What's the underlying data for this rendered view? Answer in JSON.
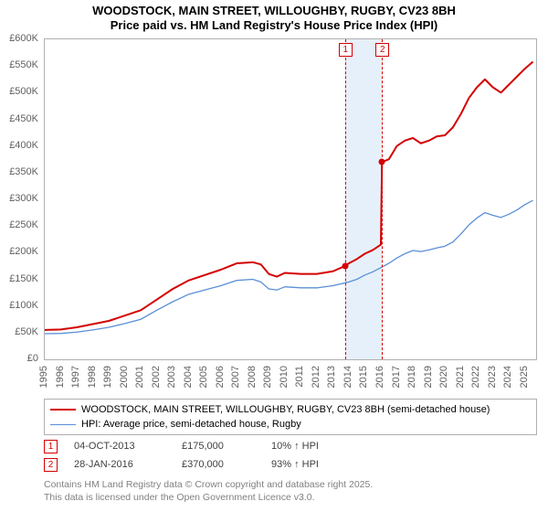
{
  "title": {
    "line1": "WOODSTOCK, MAIN STREET, WILLOUGHBY, RUGBY, CV23 8BH",
    "line2": "Price paid vs. HM Land Registry's House Price Index (HPI)"
  },
  "chart": {
    "type": "line",
    "background_color": "#ffffff",
    "border_color": "#b0b0b0",
    "highlight_band_color": "#e6f0fa",
    "xlim": [
      1995,
      2025.7
    ],
    "ylim": [
      0,
      600000
    ],
    "yticks": [
      0,
      50000,
      100000,
      150000,
      200000,
      250000,
      300000,
      350000,
      400000,
      450000,
      500000,
      550000,
      600000
    ],
    "ytick_labels": [
      "£0",
      "£50K",
      "£100K",
      "£150K",
      "£200K",
      "£250K",
      "£300K",
      "£350K",
      "£400K",
      "£450K",
      "£500K",
      "£550K",
      "£600K"
    ],
    "xticks": [
      1995,
      1996,
      1997,
      1998,
      1999,
      2000,
      2001,
      2002,
      2003,
      2004,
      2005,
      2006,
      2007,
      2008,
      2009,
      2010,
      2011,
      2012,
      2013,
      2014,
      2015,
      2016,
      2017,
      2018,
      2019,
      2020,
      2021,
      2022,
      2023,
      2024,
      2025
    ],
    "tick_font_size": 11,
    "tick_color": "#606060",
    "series": [
      {
        "name": "price_paid",
        "label": "WOODSTOCK, MAIN STREET, WILLOUGHBY, RUGBY, CV23 8BH (semi-detached house)",
        "color": "#d40000",
        "line_width": 2,
        "points": [
          [
            1995,
            55000
          ],
          [
            1996,
            56000
          ],
          [
            1997,
            60000
          ],
          [
            1998,
            66000
          ],
          [
            1999,
            72000
          ],
          [
            2000,
            82000
          ],
          [
            2001,
            92000
          ],
          [
            2002,
            112000
          ],
          [
            2003,
            132000
          ],
          [
            2004,
            148000
          ],
          [
            2005,
            158000
          ],
          [
            2006,
            168000
          ],
          [
            2007,
            180000
          ],
          [
            2008,
            182000
          ],
          [
            2008.5,
            178000
          ],
          [
            2009,
            160000
          ],
          [
            2009.5,
            155000
          ],
          [
            2010,
            162000
          ],
          [
            2011,
            160000
          ],
          [
            2012,
            160000
          ],
          [
            2013,
            165000
          ],
          [
            2013.76,
            175000
          ],
          [
            2014,
            180000
          ],
          [
            2014.5,
            188000
          ],
          [
            2015,
            198000
          ],
          [
            2015.5,
            205000
          ],
          [
            2016.0,
            215000
          ],
          [
            2016.07,
            370000
          ],
          [
            2016.5,
            375000
          ],
          [
            2017,
            400000
          ],
          [
            2017.5,
            410000
          ],
          [
            2018,
            415000
          ],
          [
            2018.5,
            405000
          ],
          [
            2019,
            410000
          ],
          [
            2019.5,
            418000
          ],
          [
            2020,
            420000
          ],
          [
            2020.5,
            435000
          ],
          [
            2021,
            460000
          ],
          [
            2021.5,
            490000
          ],
          [
            2022,
            510000
          ],
          [
            2022.5,
            525000
          ],
          [
            2023,
            510000
          ],
          [
            2023.5,
            500000
          ],
          [
            2024,
            515000
          ],
          [
            2024.5,
            530000
          ],
          [
            2025,
            545000
          ],
          [
            2025.5,
            558000
          ]
        ]
      },
      {
        "name": "hpi",
        "label": "HPI: Average price, semi-detached house, Rugby",
        "color": "#5b8fd6",
        "line_width": 1.3,
        "points": [
          [
            1995,
            48000
          ],
          [
            1996,
            48500
          ],
          [
            1997,
            51000
          ],
          [
            1998,
            55000
          ],
          [
            1999,
            60000
          ],
          [
            2000,
            67000
          ],
          [
            2001,
            75000
          ],
          [
            2002,
            92000
          ],
          [
            2003,
            108000
          ],
          [
            2004,
            122000
          ],
          [
            2005,
            130000
          ],
          [
            2006,
            138000
          ],
          [
            2007,
            148000
          ],
          [
            2008,
            150000
          ],
          [
            2008.5,
            145000
          ],
          [
            2009,
            132000
          ],
          [
            2009.5,
            130000
          ],
          [
            2010,
            136000
          ],
          [
            2011,
            134000
          ],
          [
            2012,
            134000
          ],
          [
            2013,
            138000
          ],
          [
            2014,
            145000
          ],
          [
            2014.5,
            150000
          ],
          [
            2015,
            158000
          ],
          [
            2015.5,
            164000
          ],
          [
            2016,
            172000
          ],
          [
            2016.5,
            180000
          ],
          [
            2017,
            190000
          ],
          [
            2017.5,
            198000
          ],
          [
            2018,
            204000
          ],
          [
            2018.5,
            202000
          ],
          [
            2019,
            205000
          ],
          [
            2019.5,
            209000
          ],
          [
            2020,
            212000
          ],
          [
            2020.5,
            220000
          ],
          [
            2021,
            235000
          ],
          [
            2021.5,
            252000
          ],
          [
            2022,
            265000
          ],
          [
            2022.5,
            275000
          ],
          [
            2023,
            270000
          ],
          [
            2023.5,
            266000
          ],
          [
            2024,
            272000
          ],
          [
            2024.5,
            280000
          ],
          [
            2025,
            290000
          ],
          [
            2025.5,
            298000
          ]
        ]
      }
    ],
    "sale_markers": [
      {
        "n": "1",
        "x": 2013.76,
        "y": 175000,
        "color": "#d40000"
      },
      {
        "n": "2",
        "x": 2016.07,
        "y": 370000,
        "color": "#d40000"
      }
    ],
    "marker_box_color": "#d40000",
    "marker_dash_color": "#d40000"
  },
  "legend": {
    "border_color": "#b0b0b0",
    "items": [
      {
        "color": "#d40000",
        "width": 2.5,
        "label_path": "chart.series.0.label"
      },
      {
        "color": "#5b8fd6",
        "width": 1.3,
        "label_path": "chart.series.1.label"
      }
    ]
  },
  "sales": [
    {
      "n": "1",
      "color": "#d40000",
      "date": "04-OCT-2013",
      "price": "£175,000",
      "hpi": "10% ↑ HPI"
    },
    {
      "n": "2",
      "color": "#d40000",
      "date": "28-JAN-2016",
      "price": "£370,000",
      "hpi": "93% ↑ HPI"
    }
  ],
  "footer": {
    "line1": "Contains HM Land Registry data © Crown copyright and database right 2025.",
    "line2": "This data is licensed under the Open Government Licence v3.0."
  }
}
